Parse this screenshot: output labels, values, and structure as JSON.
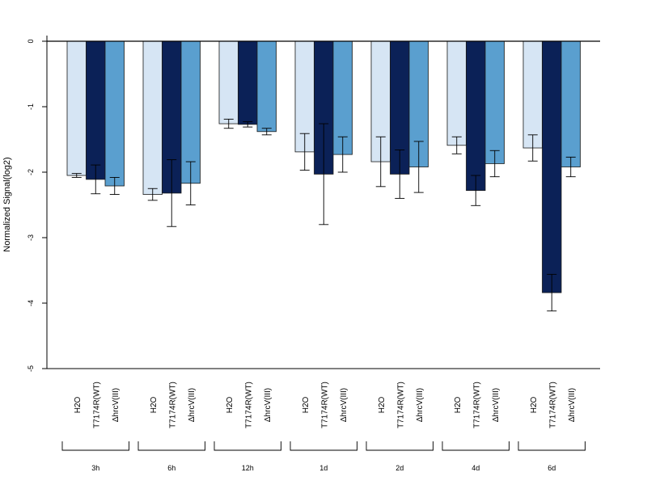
{
  "chart_data": {
    "type": "bar",
    "ylabel": "Normalized Signal(log2)",
    "ylim": [
      -5,
      0
    ],
    "yticks": [
      "0",
      "-1",
      "-2",
      "-3",
      "-4",
      "-5"
    ],
    "grid": false,
    "legend": "none",
    "conditions": [
      "H2O",
      "T7174R(WT)",
      "ΔhrcV(III)"
    ],
    "colors": [
      "#d6e5f4",
      "#0b2157",
      "#5a9fcf"
    ],
    "groups": [
      {
        "label": "3h",
        "values": [
          -2.05,
          -2.11,
          -2.21
        ],
        "errors": [
          0.03,
          0.22,
          0.13
        ]
      },
      {
        "label": "6h",
        "values": [
          -2.34,
          -2.32,
          -2.17
        ],
        "errors": [
          0.09,
          0.51,
          0.33
        ]
      },
      {
        "label": "12h",
        "values": [
          -1.26,
          -1.27,
          -1.38
        ],
        "errors": [
          0.07,
          0.04,
          0.05
        ]
      },
      {
        "label": "1d",
        "values": [
          -1.69,
          -2.03,
          -1.73
        ],
        "errors": [
          0.28,
          0.77,
          0.27
        ]
      },
      {
        "label": "2d",
        "values": [
          -1.84,
          -2.03,
          -1.92
        ],
        "errors": [
          0.38,
          0.37,
          0.39
        ]
      },
      {
        "label": "4d",
        "values": [
          -1.59,
          -2.28,
          -1.87
        ],
        "errors": [
          0.13,
          0.23,
          0.2
        ]
      },
      {
        "label": "6d",
        "values": [
          -1.63,
          -3.84,
          -1.92
        ],
        "errors": [
          0.2,
          0.28,
          0.15
        ]
      }
    ]
  }
}
